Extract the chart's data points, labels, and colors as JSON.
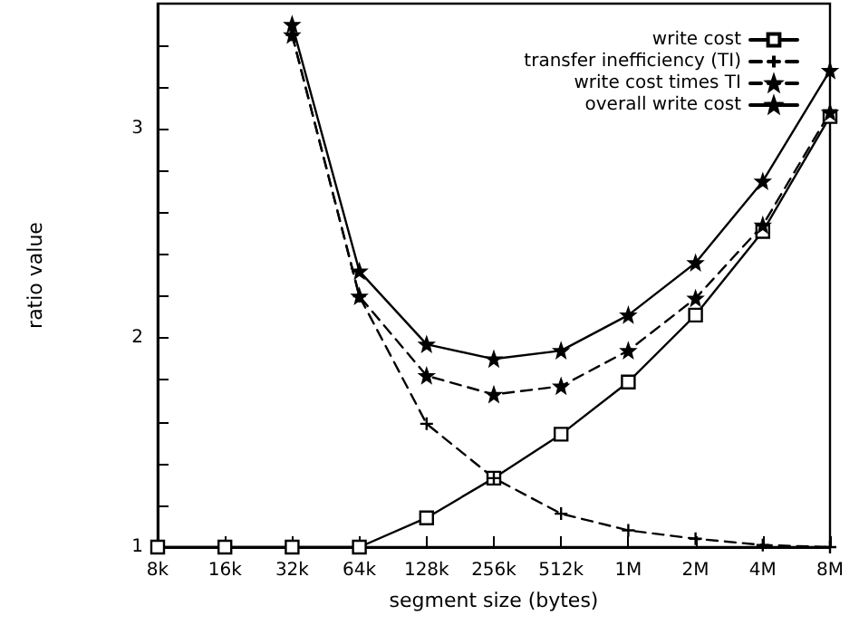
{
  "chart_data": {
    "type": "line",
    "xlabel": "segment size (bytes)",
    "ylabel": "ratio value",
    "categories": [
      "8k",
      "16k",
      "32k",
      "64k",
      "128k",
      "256k",
      "512k",
      "1M",
      "2M",
      "4M",
      "8M"
    ],
    "ylim": [
      1,
      3.6
    ],
    "yticks": [
      1,
      {
        "value": 1.2,
        "label": null
      },
      {
        "value": 1.4,
        "label": null
      },
      {
        "value": 1.6,
        "label": null
      },
      {
        "value": 1.8,
        "label": null
      },
      2,
      {
        "value": 2.2,
        "label": null
      },
      {
        "value": 2.4,
        "label": null
      },
      {
        "value": 2.6,
        "label": null
      },
      {
        "value": 2.8,
        "label": null
      },
      3,
      {
        "value": 3.2,
        "label": null
      },
      {
        "value": 3.4,
        "label": null
      }
    ],
    "grid": false,
    "legend": "top right",
    "series": [
      {
        "name": "write cost",
        "color": "#000000",
        "marker": "square",
        "line_style": "solid",
        "values": [
          1.0,
          1.0,
          1.0,
          1.0,
          1.14,
          1.33,
          1.54,
          1.79,
          2.11,
          2.51,
          3.06
        ]
      },
      {
        "name": "transfer inefficiency (TI)",
        "color": "#000000",
        "marker": "cross",
        "line_style": "dashed",
        "values": [
          null,
          null,
          3.45,
          2.2,
          1.59,
          1.33,
          1.16,
          1.08,
          1.04,
          1.01,
          1.0
        ]
      },
      {
        "name": "write cost times TI",
        "color": "#000000",
        "marker": "star",
        "line_style": "dashed",
        "values": [
          null,
          null,
          3.45,
          2.2,
          1.82,
          1.73,
          1.77,
          1.94,
          2.19,
          2.54,
          3.08
        ]
      },
      {
        "name": "overall write cost",
        "color": "#000000",
        "marker": "star",
        "line_style": "solid",
        "values": [
          null,
          null,
          3.5,
          2.32,
          1.97,
          1.9,
          1.94,
          2.11,
          2.36,
          2.75,
          3.28
        ]
      }
    ]
  }
}
